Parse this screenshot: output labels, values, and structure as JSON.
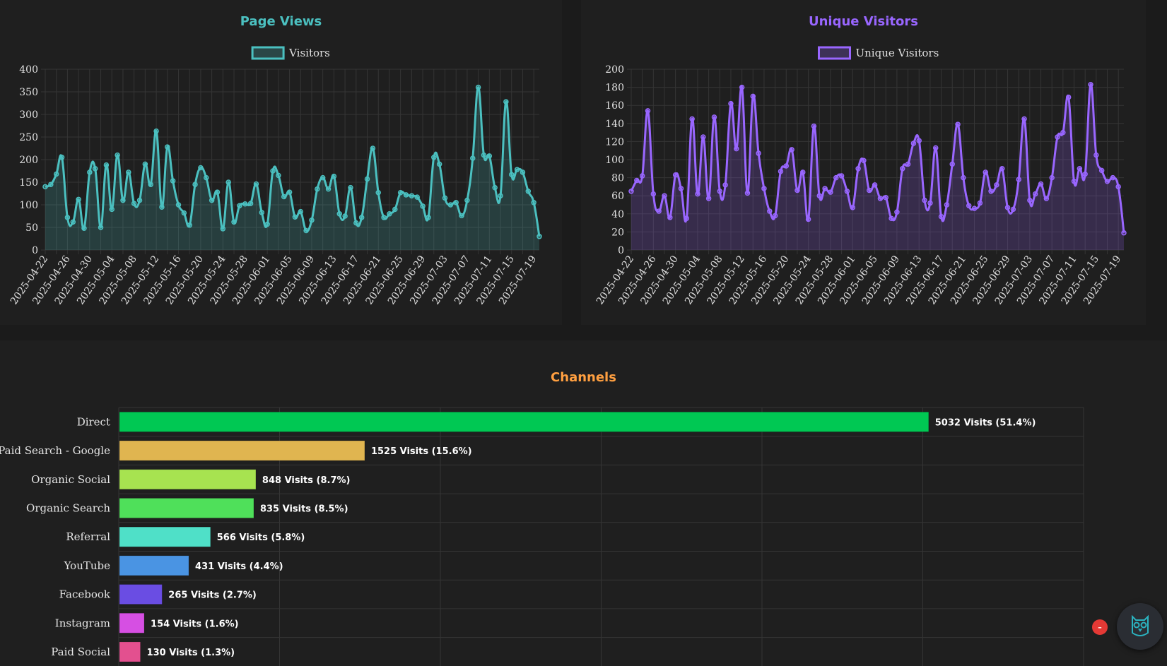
{
  "colors": {
    "page_views": "#4bc0c0",
    "unique_visitors": "#9966ff",
    "channels_title": "#ff9f40",
    "grid": "#353535",
    "tick": "#e0e0e0"
  },
  "badge": {
    "label": "–"
  },
  "chart_data": [
    {
      "type": "area",
      "title": "Page Views",
      "legend": [
        "Visitors"
      ],
      "legend_position": "top",
      "grid": true,
      "ylim": [
        0,
        400
      ],
      "yticks": [
        0,
        50,
        100,
        150,
        200,
        250,
        300,
        350,
        400
      ],
      "x_start": "2025-04-22",
      "x_end": "2025-07-21",
      "x_tick_labels": [
        "2025-04-22",
        "2025-04-26",
        "2025-04-30",
        "2025-05-04",
        "2025-05-08",
        "2025-05-12",
        "2025-05-16",
        "2025-05-20",
        "2025-05-24",
        "2025-05-28",
        "2025-06-01",
        "2025-06-05",
        "2025-06-09",
        "2025-06-13",
        "2025-06-17",
        "2025-06-21",
        "2025-06-25",
        "2025-06-29",
        "2025-07-03",
        "2025-07-07",
        "2025-07-11",
        "2025-07-15",
        "2025-07-19"
      ],
      "series": [
        {
          "name": "Visitors",
          "values": [
            140,
            145,
            168,
            205,
            72,
            62,
            112,
            48,
            172,
            180,
            50,
            188,
            90,
            210,
            110,
            172,
            103,
            110,
            190,
            145,
            263,
            95,
            228,
            153,
            100,
            82,
            55,
            145,
            182,
            160,
            110,
            128,
            47,
            150,
            62,
            98,
            102,
            103,
            146,
            83,
            57,
            175,
            165,
            118,
            128,
            73,
            85,
            43,
            66,
            135,
            160,
            135,
            163,
            80,
            75,
            138,
            60,
            72,
            157,
            225,
            127,
            72,
            80,
            90,
            127,
            122,
            120,
            117,
            97,
            72,
            205,
            190,
            115,
            100,
            105,
            76,
            110,
            203,
            360,
            210,
            208,
            138,
            120,
            328,
            167,
            178,
            172,
            130,
            105,
            30
          ]
        }
      ]
    },
    {
      "type": "area",
      "title": "Unique Visitors",
      "legend": [
        "Unique Visitors"
      ],
      "legend_position": "top",
      "grid": true,
      "ylim": [
        0,
        200
      ],
      "yticks": [
        0,
        20,
        40,
        60,
        80,
        100,
        120,
        140,
        160,
        180,
        200
      ],
      "x_start": "2025-04-22",
      "x_end": "2025-07-21",
      "x_tick_labels": [
        "2025-04-22",
        "2025-04-26",
        "2025-04-30",
        "2025-05-04",
        "2025-05-08",
        "2025-05-12",
        "2025-05-16",
        "2025-05-20",
        "2025-05-24",
        "2025-05-28",
        "2025-06-01",
        "2025-06-05",
        "2025-06-09",
        "2025-06-13",
        "2025-06-17",
        "2025-06-21",
        "2025-06-25",
        "2025-06-29",
        "2025-07-03",
        "2025-07-07",
        "2025-07-11",
        "2025-07-15",
        "2025-07-19"
      ],
      "series": [
        {
          "name": "Unique Visitors",
          "values": [
            65,
            77,
            82,
            154,
            62,
            43,
            60,
            36,
            83,
            68,
            35,
            145,
            62,
            125,
            57,
            147,
            65,
            72,
            162,
            112,
            180,
            63,
            170,
            107,
            68,
            43,
            38,
            87,
            93,
            111,
            66,
            86,
            34,
            137,
            60,
            68,
            64,
            80,
            82,
            65,
            47,
            90,
            99,
            66,
            72,
            57,
            58,
            35,
            42,
            90,
            95,
            118,
            121,
            55,
            52,
            113,
            37,
            50,
            95,
            139,
            80,
            49,
            46,
            52,
            86,
            65,
            72,
            90,
            47,
            45,
            78,
            145,
            55,
            62,
            73,
            57,
            80,
            125,
            130,
            169,
            76,
            90,
            84,
            183,
            105,
            88,
            76,
            80,
            70,
            19
          ]
        }
      ]
    },
    {
      "type": "bar",
      "orientation": "horizontal",
      "title": "Channels",
      "grid": true,
      "categories": [
        "Direct",
        "Paid Search - Google",
        "Organic Social",
        "Organic Search",
        "Referral",
        "YouTube",
        "Facebook",
        "Instagram",
        "Paid Social"
      ],
      "values": [
        5032,
        1525,
        848,
        835,
        566,
        431,
        265,
        154,
        130
      ],
      "value_labels": [
        "5032 Visits (51.4%)",
        "1525 Visits (15.6%)",
        "848 Visits (8.7%)",
        "835 Visits (8.5%)",
        "566 Visits (5.8%)",
        "431 Visits (4.4%)",
        "265 Visits (2.7%)",
        "154 Visits (1.6%)",
        "130 Visits (1.3%)"
      ],
      "bar_colors": [
        "#00c853",
        "#e0b550",
        "#a7e350",
        "#4fe05a",
        "#4fe0c8",
        "#4a94e3",
        "#6a4de3",
        "#d64fe3",
        "#e3508f"
      ],
      "xlim": [
        0,
        6000
      ]
    }
  ]
}
